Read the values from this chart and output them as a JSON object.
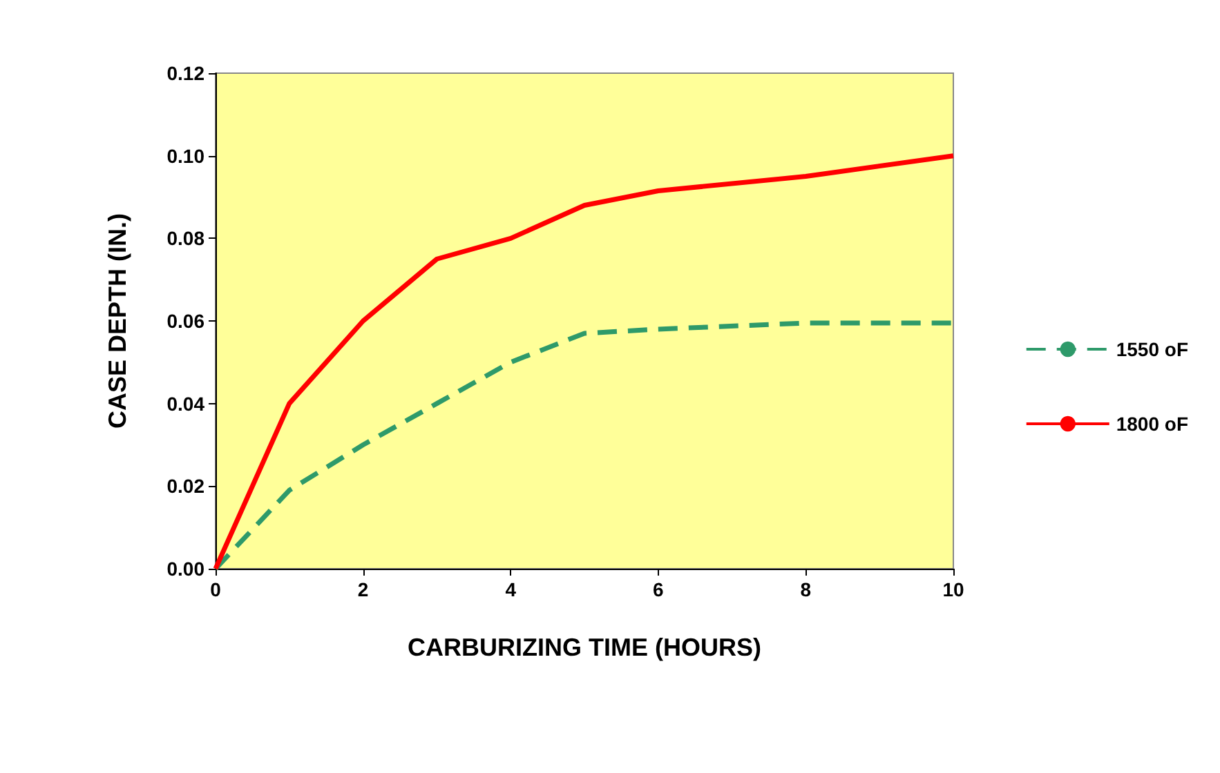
{
  "chart_data": {
    "type": "line",
    "xlabel": "CARBURIZING TIME (HOURS)",
    "ylabel": "CASE DEPTH (IN.)",
    "x": [
      0,
      1,
      2,
      3,
      4,
      5,
      6,
      8,
      10
    ],
    "series": [
      {
        "name": "1550 oF",
        "color": "#2e9a6a",
        "line_style": "dashed",
        "values": [
          0,
          0.019,
          0.03,
          0.04,
          0.05,
          0.057,
          0.058,
          0.0595,
          0.0595
        ]
      },
      {
        "name": "1800 oF",
        "color": "#ff0000",
        "line_style": "solid",
        "values": [
          0,
          0.04,
          0.06,
          0.075,
          0.08,
          0.088,
          0.0915,
          0.095,
          0.1
        ]
      }
    ],
    "xlim": [
      0,
      10
    ],
    "xticks": [
      0,
      2,
      4,
      6,
      8,
      10
    ],
    "ylim": [
      0,
      0.12
    ],
    "yticks": [
      {
        "value": 0,
        "label": "0.00"
      },
      0.02,
      0.04,
      0.06,
      0.08,
      {
        "value": 0.1,
        "label": "0.10"
      },
      0.12
    ],
    "grid": false,
    "legend": "right",
    "marker": "none"
  }
}
